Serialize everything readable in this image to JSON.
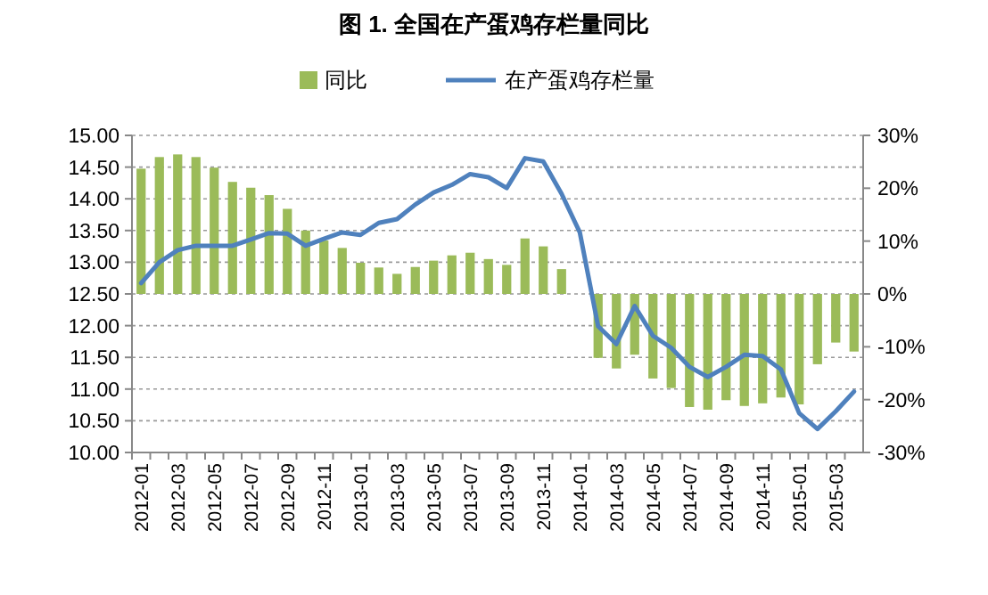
{
  "chart_data": {
    "type": "bar",
    "title": "图 1.  全国在产蛋鸡存栏量同比",
    "categories": [
      "2012-01",
      null,
      "2012-03",
      null,
      "2012-05",
      null,
      "2012-07",
      null,
      "2012-09",
      null,
      "2012-11",
      null,
      "2013-01",
      null,
      "2013-03",
      null,
      "2013-05",
      null,
      "2013-07",
      null,
      "2013-09",
      null,
      "2013-11",
      null,
      "2014-01",
      null,
      "2014-03",
      null,
      "2014-05",
      null,
      "2014-07",
      null,
      "2014-09",
      null,
      "2014-11",
      null,
      "2015-01",
      null,
      "2015-03",
      null
    ],
    "series": [
      {
        "name": "同比",
        "axis": "y2",
        "color": "#9bbb59",
        "values": [
          23.7,
          25.9,
          26.4,
          25.9,
          23.9,
          21.2,
          20.1,
          18.7,
          16.1,
          12.0,
          10.1,
          8.7,
          5.9,
          5.0,
          3.8,
          5.1,
          6.3,
          7.3,
          7.8,
          6.6,
          5.5,
          10.5,
          9.0,
          4.7,
          null,
          -12.1,
          -14.1,
          -11.5,
          -16.0,
          -17.8,
          -21.4,
          -21.9,
          -20.1,
          -21.2,
          -20.7,
          -19.6,
          -20.9,
          -13.3,
          -9.2,
          -10.9
        ]
      },
      {
        "name": "在产蛋鸡存栏量",
        "type": "line",
        "color": "#4f81bd",
        "values": [
          12.67,
          13.0,
          13.19,
          13.26,
          13.26,
          13.26,
          13.36,
          13.46,
          13.45,
          13.26,
          13.37,
          13.47,
          13.43,
          13.62,
          13.68,
          13.91,
          14.1,
          14.22,
          14.39,
          14.34,
          14.17,
          14.64,
          14.59,
          14.08,
          13.47,
          11.99,
          11.71,
          12.31,
          11.84,
          11.65,
          11.35,
          11.19,
          11.35,
          11.54,
          11.52,
          11.31,
          10.62,
          10.37,
          10.65,
          10.96
        ]
      }
    ],
    "ylim": [
      10,
      15
    ],
    "yticks": [
      {
        "value": 10,
        "label": "10.00"
      },
      {
        "value": 10.5,
        "label": "10.50"
      },
      {
        "value": 11,
        "label": "11.00"
      },
      {
        "value": 11.5,
        "label": "11.50"
      },
      {
        "value": 12,
        "label": "12.00"
      },
      {
        "value": 12.5,
        "label": "12.50"
      },
      {
        "value": 13,
        "label": "13.00"
      },
      {
        "value": 13.5,
        "label": "13.50"
      },
      {
        "value": 14,
        "label": "14.00"
      },
      {
        "value": 14.5,
        "label": "14.50"
      },
      {
        "value": 15,
        "label": "15.00"
      }
    ],
    "y2lim": [
      -30,
      30
    ],
    "y2ticks": [
      {
        "value": -30,
        "label": "-30%"
      },
      {
        "value": -20,
        "label": "-20%"
      },
      {
        "value": -10,
        "label": "-10%"
      },
      {
        "value": 0,
        "label": "0%"
      },
      {
        "value": 10,
        "label": "10%"
      },
      {
        "value": 20,
        "label": "20%"
      },
      {
        "value": 30,
        "label": "30%"
      }
    ],
    "grid": "y",
    "legend": "top",
    "marker": "none"
  }
}
